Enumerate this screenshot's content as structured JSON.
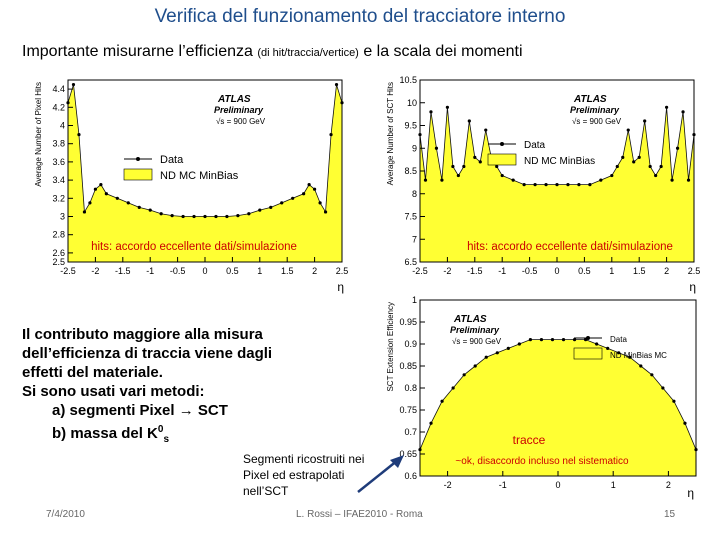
{
  "slide": {
    "title": "Verifica del funzionamento del tracciatore interno",
    "subtitle_main": "Importante misurarne l’efficienza",
    "subtitle_small": "(di hit/traccia/vertice)",
    "subtitle_end": "e la scala dei momenti"
  },
  "body_lines": [
    "Il contributo maggiore alla misura",
    "dell’efficienza di traccia viene dagli",
    "effetti del materiale.",
    "Si sono usati vari metodi:",
    "a) segmenti Pixel → SCT",
    "b) massa del K",
    "0",
    "s"
  ],
  "annotation": "Segmenti ricostruiti nei Pixel ed estrapolati nell’SCT",
  "footer": {
    "date": "7/4/2010",
    "center": "L. Rossi – IFAE2010 - Roma",
    "page": "15"
  },
  "colors": {
    "title": "#1f4e8c",
    "mc_fill": "#ffff33",
    "caption_red": "#cc0000",
    "arrow": "#1f3c7a"
  },
  "chart_data": [
    {
      "type": "area",
      "ylabel": "Average Number of Pixel Hits",
      "xlabel": "η",
      "xlim": [
        -2.5,
        2.5
      ],
      "ylim": [
        2.5,
        4.5
      ],
      "xticks": [
        "-2.5",
        "-2",
        "-1.5",
        "-1",
        "-0.5",
        "0",
        "0.5",
        "1",
        "1.5",
        "2",
        "2.5"
      ],
      "yticks": [
        "2.5",
        "2.6",
        "2.8",
        "3",
        "3.2",
        "3.4",
        "3.6",
        "3.8",
        "4",
        "4.2",
        "4.4"
      ],
      "atlas": "ATLAS",
      "preliminary": "Preliminary",
      "energy": "√s = 900 GeV",
      "legend": [
        "Data",
        "ND MC MinBias"
      ],
      "caption": "hits: accordo eccellente dati/simulazione",
      "x": [
        -2.5,
        -2.4,
        -2.3,
        -2.2,
        -2.1,
        -2.0,
        -1.9,
        -1.8,
        -1.6,
        -1.4,
        -1.2,
        -1.0,
        -0.8,
        -0.6,
        -0.4,
        -0.2,
        0.0,
        0.2,
        0.4,
        0.6,
        0.8,
        1.0,
        1.2,
        1.4,
        1.6,
        1.8,
        1.9,
        2.0,
        2.1,
        2.2,
        2.3,
        2.4,
        2.5
      ],
      "series": [
        {
          "name": "ND MC MinBias",
          "values": [
            4.25,
            4.45,
            3.9,
            3.05,
            3.15,
            3.3,
            3.35,
            3.25,
            3.2,
            3.15,
            3.1,
            3.07,
            3.03,
            3.01,
            3.0,
            3.0,
            3.0,
            3.0,
            3.0,
            3.01,
            3.03,
            3.07,
            3.1,
            3.15,
            3.2,
            3.25,
            3.35,
            3.3,
            3.15,
            3.05,
            3.9,
            4.45,
            4.25
          ]
        }
      ]
    },
    {
      "type": "area",
      "ylabel": "Average Number of SCT Hits",
      "xlabel": "η",
      "xlim": [
        -2.5,
        2.5
      ],
      "ylim": [
        6.5,
        10.5
      ],
      "xticks": [
        "-2.5",
        "-2",
        "-1.5",
        "-1",
        "-0.5",
        "0",
        "0.5",
        "1",
        "1.5",
        "2",
        "2.5"
      ],
      "yticks": [
        "6.5",
        "7",
        "7.5",
        "8",
        "8.5",
        "9",
        "9.5",
        "10",
        "10.5"
      ],
      "atlas": "ATLAS",
      "preliminary": "Preliminary",
      "energy": "√s = 900 GeV",
      "legend": [
        "Data",
        "ND MC MinBias"
      ],
      "caption": "hits: accordo eccellente dati/simulazione",
      "x": [
        -2.5,
        -2.4,
        -2.3,
        -2.2,
        -2.1,
        -2.0,
        -1.9,
        -1.8,
        -1.7,
        -1.6,
        -1.5,
        -1.4,
        -1.3,
        -1.2,
        -1.1,
        -1.0,
        -0.8,
        -0.6,
        -0.4,
        -0.2,
        0.0,
        0.2,
        0.4,
        0.6,
        0.8,
        1.0,
        1.1,
        1.2,
        1.3,
        1.4,
        1.5,
        1.6,
        1.7,
        1.8,
        1.9,
        2.0,
        2.1,
        2.2,
        2.3,
        2.4,
        2.5
      ],
      "series": [
        {
          "name": "ND MC MinBias",
          "values": [
            9.3,
            8.3,
            9.8,
            9.0,
            8.3,
            9.9,
            8.6,
            8.4,
            8.6,
            9.6,
            8.8,
            8.7,
            9.4,
            8.8,
            8.6,
            8.4,
            8.3,
            8.2,
            8.2,
            8.2,
            8.2,
            8.2,
            8.2,
            8.2,
            8.3,
            8.4,
            8.6,
            8.8,
            9.4,
            8.7,
            8.8,
            9.6,
            8.6,
            8.4,
            8.6,
            9.9,
            8.3,
            9.0,
            9.8,
            8.3,
            9.3
          ]
        }
      ]
    },
    {
      "type": "area",
      "ylabel": "SCT Extension Efficiency",
      "xlabel": "η",
      "xlim": [
        -2.5,
        2.5
      ],
      "ylim": [
        0.6,
        1.0
      ],
      "xticks": [
        "-2",
        "-1",
        "0",
        "1",
        "2"
      ],
      "yticks": [
        "0.6",
        "0.65",
        "0.7",
        "0.75",
        "0.8",
        "0.85",
        "0.9",
        "0.95",
        "1"
      ],
      "atlas": "ATLAS",
      "preliminary": "Preliminary",
      "energy": "√s = 900 GeV",
      "legend": [
        "Data",
        "ND MinBias MC"
      ],
      "caption_title": "tracce",
      "caption": "~ok, disaccordo incluso nel sistematico",
      "x": [
        -2.5,
        -2.3,
        -2.1,
        -1.9,
        -1.7,
        -1.5,
        -1.3,
        -1.1,
        -0.9,
        -0.7,
        -0.5,
        -0.3,
        -0.1,
        0.1,
        0.3,
        0.5,
        0.7,
        0.9,
        1.1,
        1.3,
        1.5,
        1.7,
        1.9,
        2.1,
        2.3,
        2.5
      ],
      "series": [
        {
          "name": "ND MinBias MC",
          "values": [
            0.66,
            0.72,
            0.77,
            0.8,
            0.83,
            0.85,
            0.87,
            0.88,
            0.89,
            0.9,
            0.91,
            0.91,
            0.91,
            0.91,
            0.91,
            0.91,
            0.9,
            0.89,
            0.88,
            0.87,
            0.85,
            0.83,
            0.8,
            0.77,
            0.72,
            0.66
          ]
        }
      ]
    }
  ]
}
